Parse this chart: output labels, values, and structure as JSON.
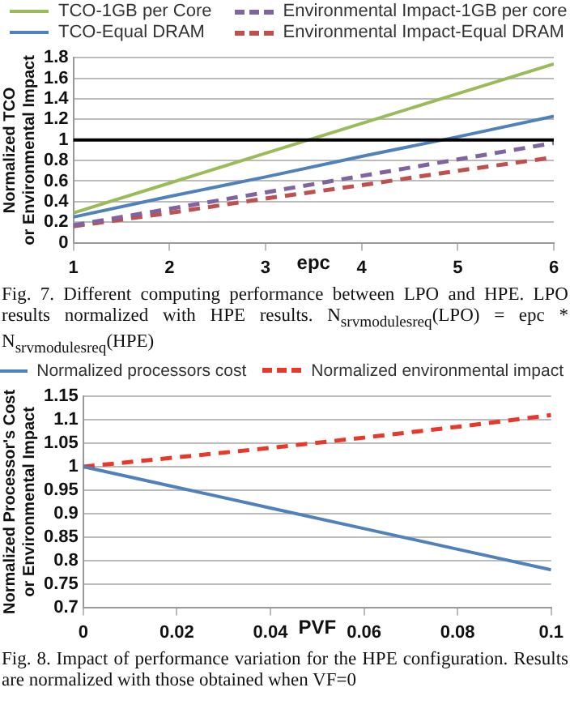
{
  "chart_data": [
    {
      "type": "line",
      "xlabel": "epc",
      "ylabel": "Normalized TCO\nor Environmental Impact",
      "x": [
        1,
        2,
        3,
        4,
        5,
        6
      ],
      "xlim": [
        1,
        6
      ],
      "xticks": [
        1,
        2,
        3,
        4,
        5,
        6
      ],
      "ylim": [
        0,
        1.8
      ],
      "yticks": [
        0,
        0.2,
        0.4,
        0.6,
        0.8,
        1,
        1.2,
        1.4,
        1.6,
        1.8
      ],
      "grid": "y",
      "legend": "top",
      "marker": "none",
      "series": [
        {
          "name": "TCO-1GB per Core",
          "color": "#9bbb59",
          "line_style": "solid",
          "values": [
            0.29,
            0.58,
            0.87,
            1.16,
            1.45,
            1.74
          ]
        },
        {
          "name": "Environmental Impact-1GB per core",
          "color": "#8064a2",
          "line_style": "dashed",
          "values": [
            0.17,
            0.33,
            0.49,
            0.65,
            0.81,
            0.97
          ]
        },
        {
          "name": "TCO-Equal DRAM",
          "color": "#4f81bd",
          "line_style": "solid",
          "values": [
            0.25,
            0.45,
            0.64,
            0.84,
            1.03,
            1.23
          ]
        },
        {
          "name": "Environmental Impact-Equal DRAM",
          "color": "#c0504d",
          "line_style": "dashed",
          "values": [
            0.16,
            0.29,
            0.43,
            0.56,
            0.7,
            0.83
          ]
        }
      ],
      "ref_lines": [
        {
          "axis": "y",
          "value": 1,
          "color": "#000000"
        }
      ],
      "annotations": [
        "Fig. 7.   Different computing performance between LPO and HPE. LPO results normalized with HPE results. N$_{srvmodulesreq}$(LPO) = epc * N$_{srvmodulesreq}$(HPE)"
      ]
    },
    {
      "type": "line",
      "xlabel": "PVF",
      "ylabel": "Normalized Processor's Cost\nor Environmental Impact",
      "x": [
        0,
        0.02,
        0.04,
        0.06,
        0.08,
        0.1
      ],
      "xlim": [
        0,
        0.1
      ],
      "xticks": [
        0,
        0.02,
        0.04,
        0.06,
        0.08,
        0.1
      ],
      "ylim": [
        0.7,
        1.15
      ],
      "yticks": [
        0.7,
        0.75,
        0.8,
        0.85,
        0.9,
        0.95,
        1,
        1.05,
        1.1,
        1.15
      ],
      "grid": "y",
      "legend": "top",
      "marker": "none",
      "series": [
        {
          "name": "Normalized processors cost",
          "color": "#4f81bd",
          "line_style": "solid",
          "values": [
            1,
            0.956,
            0.912,
            0.868,
            0.824,
            0.78
          ]
        },
        {
          "name": "Normalized environmental impact",
          "color": "#e8382a",
          "line_style": "dashed",
          "values": [
            1,
            1.02,
            1.04,
            1.062,
            1.085,
            1.11
          ]
        }
      ],
      "annotations": [
        "Fig. 8.   Impact of performance variation for the HPE configuration. Results are normalized with those obtained when VF=0"
      ]
    }
  ]
}
